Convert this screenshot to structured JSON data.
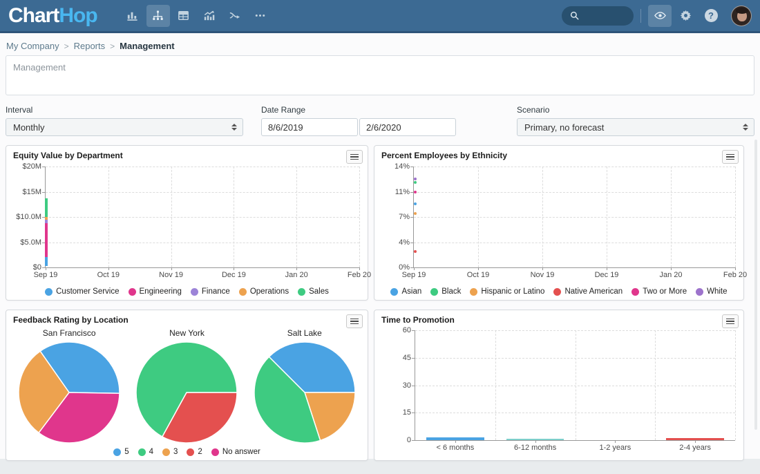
{
  "navbar": {
    "bg_color": "#3c6a93",
    "logo": {
      "part1": "Chart",
      "part2": "Hop"
    },
    "left_icons": [
      {
        "name": "bar-chart-icon",
        "selected": false
      },
      {
        "name": "org-chart-icon",
        "selected": true
      },
      {
        "name": "table-icon",
        "selected": false
      },
      {
        "name": "trend-chart-icon",
        "selected": false
      },
      {
        "name": "flow-arrow-icon",
        "selected": false
      },
      {
        "name": "ellipsis-icon",
        "selected": false
      }
    ],
    "right_icons": [
      {
        "name": "eye-icon",
        "selected": true
      },
      {
        "name": "gear-icon",
        "selected": false
      },
      {
        "name": "help-icon",
        "selected": false
      }
    ]
  },
  "breadcrumb": {
    "items": [
      "My Company",
      "Reports",
      "Management"
    ],
    "separator": ">"
  },
  "report_title_box": {
    "value": "Management"
  },
  "filters": {
    "interval": {
      "label": "Interval",
      "value": "Monthly"
    },
    "date_range": {
      "label": "Date Range",
      "start": "8/6/2019",
      "end": "2/6/2020"
    },
    "scenario": {
      "label": "Scenario",
      "value": "Primary, no forecast"
    }
  },
  "chart_data": [
    {
      "type": "line",
      "title": "Equity Value by Department",
      "x": [
        "Sep 19",
        "Oct 19",
        "Nov 19",
        "Dec 19",
        "Jan 20",
        "Feb 20"
      ],
      "ylim": [
        0,
        20
      ],
      "ytick_labels": [
        "$20M",
        "$15M",
        "$10.0M",
        "$5.0M",
        "$0"
      ],
      "note": "stacked series values ($M) visible only at Sep 19",
      "series": [
        {
          "name": "Customer Service",
          "color": "#4aa3e3",
          "stack_range": [
            0.3,
            2.0
          ]
        },
        {
          "name": "Engineering",
          "color": "#e0368c",
          "stack_range": [
            2.0,
            8.8
          ]
        },
        {
          "name": "Finance",
          "color": "#9c84d8",
          "stack_range": [
            8.8,
            9.4
          ]
        },
        {
          "name": "Operations",
          "color": "#eda24f",
          "stack_range": [
            9.4,
            10.0
          ]
        },
        {
          "name": "Sales",
          "color": "#3ecb81",
          "stack_range": [
            10.0,
            13.7
          ]
        }
      ],
      "legend_position": "bottom",
      "grid": true
    },
    {
      "type": "scatter",
      "title": "Percent Employees by Ethnicity",
      "x": [
        "Sep 19",
        "Oct 19",
        "Nov 19",
        "Dec 19",
        "Jan 20",
        "Feb 20"
      ],
      "ylim": [
        0,
        14
      ],
      "ytick_labels": [
        "14%",
        "11%",
        "7%",
        "4%",
        "0%"
      ],
      "note": "points (percent) visible only at Sep 19",
      "series": [
        {
          "name": "Asian",
          "color": "#4aa3e3",
          "value": 8.8
        },
        {
          "name": "Black",
          "color": "#3ecb81",
          "value": 11.8
        },
        {
          "name": "Hispanic or Latino",
          "color": "#eda24f",
          "value": 7.5
        },
        {
          "name": "Native American",
          "color": "#e4504f",
          "value": 2.2
        },
        {
          "name": "Two or More",
          "color": "#e0368c",
          "value": 10.5
        },
        {
          "name": "White",
          "color": "#9d73cc",
          "value": 12.3
        }
      ],
      "legend_position": "bottom",
      "grid": true
    },
    {
      "type": "pie",
      "title": "Feedback Rating by Location",
      "legend": [
        {
          "label": "5",
          "color": "#4aa3e3"
        },
        {
          "label": "4",
          "color": "#3ecb81"
        },
        {
          "label": "3",
          "color": "#eda24f"
        },
        {
          "label": "2",
          "color": "#e4504f"
        },
        {
          "label": "No answer",
          "color": "#e0368c"
        }
      ],
      "pies": [
        {
          "label": "San Francisco",
          "start_angle": 325,
          "slices": [
            {
              "label": "5",
              "pct": 35
            },
            {
              "label": "No answer",
              "pct": 35
            },
            {
              "label": "3",
              "pct": 30
            }
          ]
        },
        {
          "label": "New York",
          "start_angle": 90,
          "slices": [
            {
              "label": "2",
              "pct": 33
            },
            {
              "label": "4",
              "pct": 67
            }
          ]
        },
        {
          "label": "Salt Lake",
          "start_angle": 315,
          "slices": [
            {
              "label": "5",
              "pct": 37.5
            },
            {
              "label": "3",
              "pct": 20
            },
            {
              "label": "4",
              "pct": 42.5
            }
          ]
        }
      ],
      "legend_position": "bottom"
    },
    {
      "type": "bar",
      "title": "Time to Promotion",
      "categories": [
        "< 6 months",
        "6-12 months",
        "1-2 years",
        "2-4 years"
      ],
      "values": [
        1.4,
        0.5,
        0,
        1.0
      ],
      "bar_colors": [
        "#4aa3e3",
        "#7fd0cc",
        "#cccccc",
        "#e4504f"
      ],
      "ylim": [
        0,
        60
      ],
      "ytick_labels": [
        "60",
        "45",
        "30",
        "15",
        "0"
      ],
      "grid": true
    }
  ]
}
